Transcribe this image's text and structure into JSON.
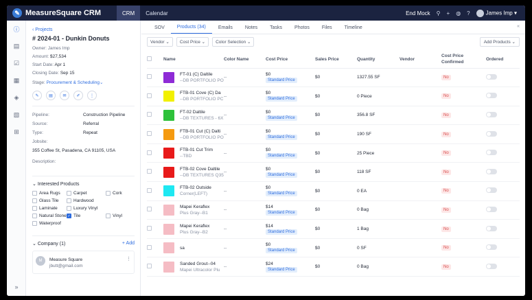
{
  "app": {
    "name": "MeasureSquare CRM",
    "logo_glyph": "✎",
    "nav": [
      "CRM",
      "Calendar"
    ],
    "end_mock": "End Mock",
    "user": "James Imp"
  },
  "sidebar": {
    "icons": [
      "info-icon",
      "contacts-icon",
      "tasks-icon",
      "calendar-icon",
      "products-icon",
      "reports-icon",
      "cart-icon"
    ],
    "expand": "»"
  },
  "project": {
    "back": "‹ Projects",
    "title": "# 2024-01 - Dunkin Donuts",
    "owner_label": "Owner:",
    "owner": "James Imp",
    "amount_label": "Amount:",
    "amount": "$27,534",
    "start_label": "Start Date:",
    "start": "Apr 1",
    "closing_label": "Closing Date:",
    "closing": "Sep 15",
    "stage_label": "Stage:",
    "stage": "Procurement & Scheduling",
    "details": [
      {
        "label": "Pipeline:",
        "value": "Construction Pipeline"
      },
      {
        "label": "Source:",
        "value": "Referral"
      },
      {
        "label": "Type:",
        "value": "Repeat"
      },
      {
        "label": "Jobsite:",
        "value": ""
      }
    ],
    "jobsite_address": "355 Coffee St, Pasadena, CA 91105, USA",
    "description_label": "Description:",
    "interested_title": "Interested Products",
    "interested": [
      {
        "label": "Area Rugs",
        "checked": false
      },
      {
        "label": "Carpet",
        "checked": false
      },
      {
        "label": "Cork",
        "checked": false
      },
      {
        "label": "Glass Tile",
        "checked": false
      },
      {
        "label": "Hardwood",
        "checked": false
      },
      {
        "label": "",
        "checked": false
      },
      {
        "label": "Laminate",
        "checked": false
      },
      {
        "label": "Luxury Vinyl",
        "checked": false
      },
      {
        "label": "",
        "checked": false
      },
      {
        "label": "Natural Stone",
        "checked": false
      },
      {
        "label": "Tile",
        "checked": true
      },
      {
        "label": "Vinyl",
        "checked": false
      },
      {
        "label": "Waterproof",
        "checked": false
      }
    ],
    "company_title": "Company (1)",
    "company_add": "+ Add",
    "company_initial": "M",
    "company_name": "Measure Square",
    "company_email": "jbutt@gmail.com"
  },
  "tabs": [
    "SOV",
    "Products (34)",
    "Emails",
    "Notes",
    "Tasks",
    "Photos",
    "Files",
    "Timeline"
  ],
  "filters": [
    "Vendor ⌄",
    "Cost Price ⌄",
    "Color Selection ⌄"
  ],
  "add_products": "Add Products ⌄",
  "columns": [
    "Name",
    "Color Name",
    "Cost Price",
    "Sales Price",
    "Quantity",
    "Vendor",
    "Cost Price Confirmed",
    "Ordered"
  ],
  "rows": [
    {
      "color": "#8e2bd6",
      "name": "FT-01 (C) Daltile",
      "sub": "--DB PORTFOLIO PO",
      "color_name": "--",
      "cost": "$0",
      "sales": "$0",
      "qty": "1327.55 SF",
      "confirmed": "No"
    },
    {
      "color": "#f2f000",
      "name": "FTB-01 Cove (C) Da",
      "sub": "--DB PORTFOLIO PC",
      "color_name": "--",
      "cost": "$0",
      "sales": "$0",
      "qty": "0 Piece",
      "confirmed": "No"
    },
    {
      "color": "#2ec13a",
      "name": "FT-02 Daltile",
      "sub": "--DB TEXTURES - 6X",
      "color_name": "--",
      "cost": "$0",
      "sales": "$0",
      "qty": "356.8 SF",
      "confirmed": "No"
    },
    {
      "color": "#f59a10",
      "name": "FTB-01 Cut (C) Dalti",
      "sub": "--DB PORTFOLIO PO",
      "color_name": "--",
      "cost": "$0",
      "sales": "$0",
      "qty": "190 SF",
      "confirmed": "No"
    },
    {
      "color": "#e81a1a",
      "name": "FTB-01 Cut Trim",
      "sub": "--TBD",
      "color_name": "--",
      "cost": "$0",
      "sales": "$0",
      "qty": "25 Piece",
      "confirmed": "No"
    },
    {
      "color": "#e81a1a",
      "name": "FTB-02 Cove Daltile",
      "sub": "--DB TEXTURES Q35",
      "color_name": "--",
      "cost": "$0",
      "sales": "$0",
      "qty": "118 SF",
      "confirmed": "No"
    },
    {
      "color": "#1ee8f2",
      "name": "FTB-02 Outside",
      "sub": "Corner(LEFT)",
      "color_name": "--",
      "cost": "$0",
      "sales": "$0",
      "qty": "0 EA",
      "confirmed": "No"
    },
    {
      "color": "#f5bcc4",
      "name": "Mapei Keraflex",
      "sub": "Plus Gray--B1",
      "color_name": "--",
      "cost": "$14",
      "sales": "$0",
      "qty": "0 Bag",
      "confirmed": "No"
    },
    {
      "color": "#f5bcc4",
      "name": "Mapei Keraflex",
      "sub": "Plus Gray--B2",
      "color_name": "--",
      "cost": "$14",
      "sales": "$0",
      "qty": "1 Bag",
      "confirmed": "No"
    },
    {
      "color": "#f5bcc4",
      "name": "sa",
      "sub": "",
      "color_name": "--",
      "cost": "$0",
      "sales": "$0",
      "qty": "0 SF",
      "confirmed": "No"
    },
    {
      "color": "#f5bcc4",
      "name": "Sanded Grout--04",
      "sub": "Mapei Ultracolor Plu",
      "color_name": "--",
      "cost": "$24",
      "sales": "$0",
      "qty": "0 Bag",
      "confirmed": "No"
    }
  ],
  "standard_price_label": "Standard Price"
}
